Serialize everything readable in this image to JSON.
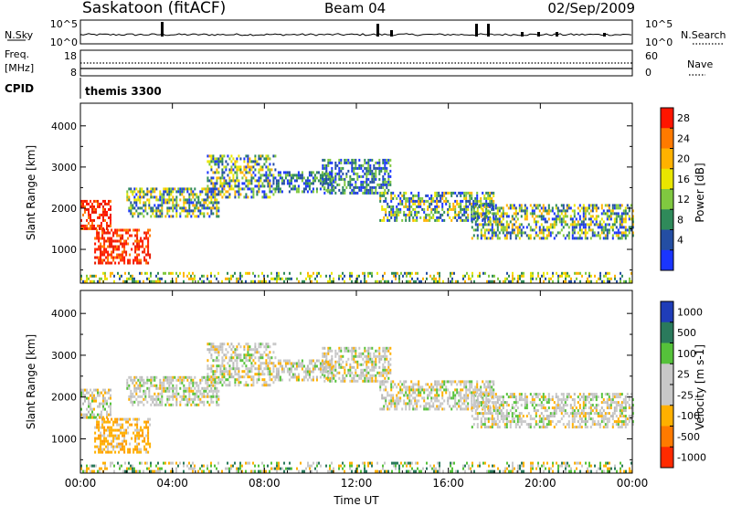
{
  "header": {
    "station": "Saskatoon (fitACF)",
    "beam": "Beam 04",
    "date": "02/Sep/2009"
  },
  "top_panels": {
    "nsky_label": "N.Sky",
    "nsky_ticks": [
      "10^5",
      "10^0"
    ],
    "nsearch_label": "N.Search",
    "nsearch_ticks": [
      "10^5",
      "10^0"
    ],
    "freq_label_1": "Freq.",
    "freq_label_2": "[MHz]",
    "freq_ticks": [
      "18",
      "8"
    ],
    "nave_label": "Nave",
    "nave_ticks": [
      "60",
      "0"
    ],
    "cpid_label": "CPID",
    "cpid_value": "themis 3300"
  },
  "chart_data": [
    {
      "type": "heatmap",
      "title": "",
      "ylabel": "Slant Range [km]",
      "xlabel": "",
      "ylim": [
        180,
        4550
      ],
      "yticks": [
        "4000",
        "3000",
        "2000",
        "1000"
      ],
      "colorbar_label": "Power [dB]",
      "colorbar_ticks": [
        "28",
        "24",
        "20",
        "16",
        "12",
        "8",
        "4"
      ],
      "colorbar_colors": [
        "#ff1500",
        "#ff7a00",
        "#ffb200",
        "#e9e600",
        "#80c840",
        "#2f8a5a",
        "#244ea3",
        "#1a35ff"
      ],
      "scatter_regions": [
        {
          "t0": 0.0,
          "t1": 1.3,
          "r0": 1500,
          "r1": 2200,
          "level": "strong"
        },
        {
          "t0": 0.6,
          "t1": 3.0,
          "r0": 650,
          "r1": 1500,
          "level": "strong"
        },
        {
          "t0": 2.0,
          "t1": 6.0,
          "r0": 1800,
          "r1": 2500,
          "level": "medium"
        },
        {
          "t0": 5.5,
          "t1": 8.5,
          "r0": 2300,
          "r1": 3300,
          "level": "medium"
        },
        {
          "t0": 8.5,
          "t1": 11.0,
          "r0": 2400,
          "r1": 2900,
          "level": "weak"
        },
        {
          "t0": 10.5,
          "t1": 13.5,
          "r0": 2400,
          "r1": 3200,
          "level": "weak"
        },
        {
          "t0": 13.0,
          "t1": 18.0,
          "r0": 1700,
          "r1": 2400,
          "level": "medium"
        },
        {
          "t0": 17.0,
          "t1": 24.0,
          "r0": 1300,
          "r1": 2100,
          "level": "medium"
        },
        {
          "t0": 0.0,
          "t1": 24.0,
          "r0": 200,
          "r1": 450,
          "level": "ground"
        }
      ]
    },
    {
      "type": "heatmap",
      "title": "",
      "ylabel": "Slant Range [km]",
      "xlabel": "Time UT",
      "ylim": [
        180,
        4550
      ],
      "yticks": [
        "4000",
        "3000",
        "2000",
        "1000"
      ],
      "xlim": [
        0,
        24
      ],
      "xticks": [
        "00:00",
        "04:00",
        "08:00",
        "12:00",
        "16:00",
        "20:00",
        "00:00"
      ],
      "colorbar_label": "Velocity [m s-1]",
      "colorbar_ticks": [
        "1000",
        "500",
        "100",
        "25",
        "-25",
        "-100",
        "-500",
        "-1000"
      ],
      "colorbar_colors": [
        "#1f3db8",
        "#2a7a5c",
        "#55c23a",
        "#c8c8c8",
        "#c8c8c8",
        "#ffb000",
        "#ff7a00",
        "#ff2a00"
      ],
      "scatter_regions": [
        {
          "t0": 0.0,
          "t1": 1.3,
          "r0": 1500,
          "r1": 2200,
          "level": "grey"
        },
        {
          "t0": 0.6,
          "t1": 3.0,
          "r0": 650,
          "r1": 1500,
          "level": "orange"
        },
        {
          "t0": 2.0,
          "t1": 6.0,
          "r0": 1800,
          "r1": 2500,
          "level": "grey"
        },
        {
          "t0": 5.5,
          "t1": 8.5,
          "r0": 2300,
          "r1": 3300,
          "level": "grey"
        },
        {
          "t0": 8.5,
          "t1": 11.0,
          "r0": 2400,
          "r1": 2900,
          "level": "grey"
        },
        {
          "t0": 10.5,
          "t1": 13.5,
          "r0": 2400,
          "r1": 3200,
          "level": "grey"
        },
        {
          "t0": 13.0,
          "t1": 18.0,
          "r0": 1700,
          "r1": 2400,
          "level": "grey"
        },
        {
          "t0": 17.0,
          "t1": 24.0,
          "r0": 1300,
          "r1": 2100,
          "level": "grey"
        },
        {
          "t0": 0.0,
          "t1": 24.0,
          "r0": 200,
          "r1": 450,
          "level": "ground"
        }
      ]
    }
  ]
}
